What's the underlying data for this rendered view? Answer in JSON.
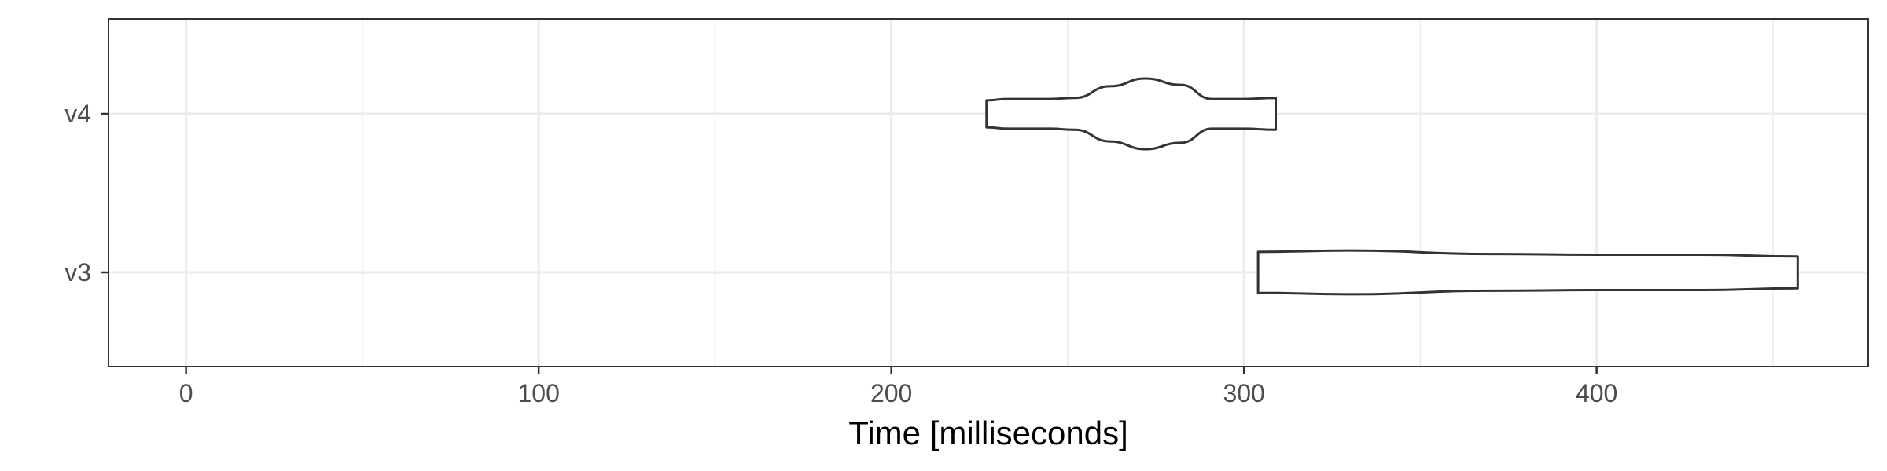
{
  "chart_data": {
    "type": "violin",
    "title": "",
    "xlabel": "Time [milliseconds]",
    "ylabel": "",
    "xlim": [
      -22,
      477
    ],
    "x_ticks": [
      0,
      100,
      200,
      300,
      400
    ],
    "x_tick_labels": [
      "0",
      "100",
      "200",
      "300",
      "400"
    ],
    "x_minor_ticks": [
      50,
      150,
      250,
      350,
      450
    ],
    "grid": true,
    "categories": [
      "v3",
      "v4"
    ],
    "series": [
      {
        "category": "v4",
        "range": [
          227,
          309
        ],
        "profile": [
          [
            227,
            0.38
          ],
          [
            233,
            0.42
          ],
          [
            245,
            0.42
          ],
          [
            252,
            0.45
          ],
          [
            262,
            0.78
          ],
          [
            272,
            1.0
          ],
          [
            282,
            0.82
          ],
          [
            291,
            0.42
          ],
          [
            300,
            0.42
          ],
          [
            309,
            0.45
          ]
        ]
      },
      {
        "category": "v3",
        "range": [
          304,
          457
        ],
        "profile": [
          [
            304,
            0.58
          ],
          [
            330,
            0.62
          ],
          [
            370,
            0.52
          ],
          [
            400,
            0.5
          ],
          [
            430,
            0.5
          ],
          [
            457,
            0.45
          ]
        ]
      }
    ],
    "colors": {
      "outline": "#333333",
      "fill": "#ffffff",
      "grid": "#ebebeb",
      "panel_border": "#333333"
    }
  }
}
